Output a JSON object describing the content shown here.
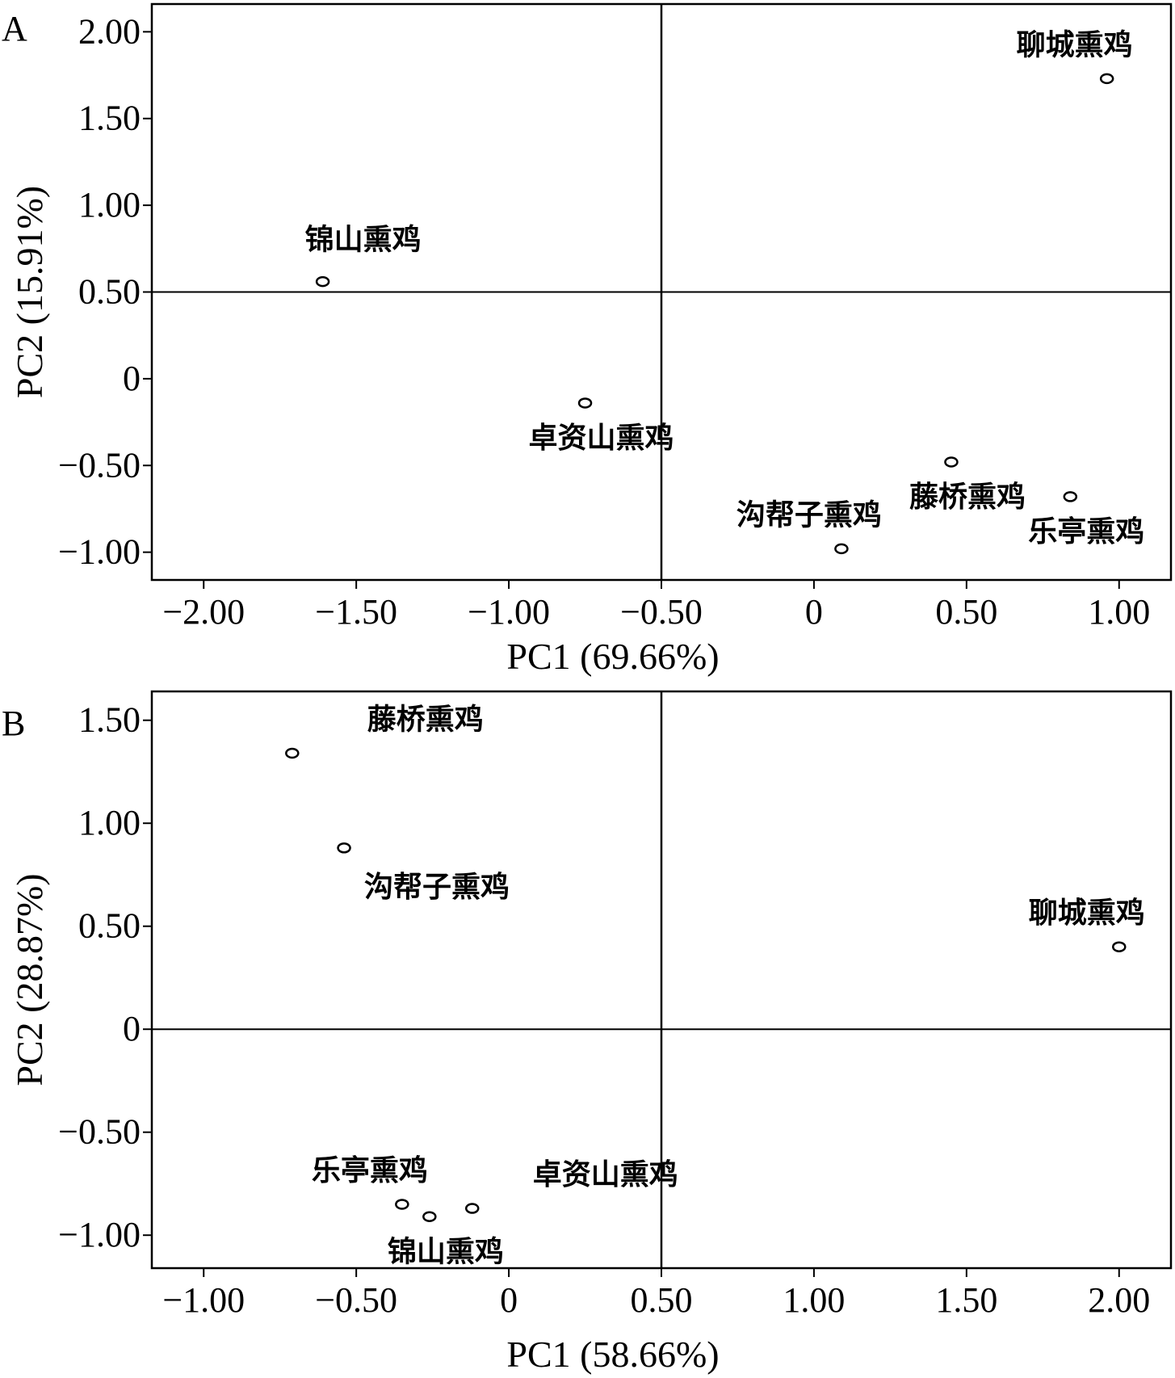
{
  "chart_data": [
    {
      "panel": "A",
      "type": "scatter",
      "xlabel": "PC1 (69.66%)",
      "ylabel": "PC2 (15.91%)",
      "xlim": [
        -2.17,
        1.17
      ],
      "ylim": [
        -1.16,
        2.16
      ],
      "xticks": [
        -2.0,
        -1.5,
        -1.0,
        -0.5,
        0,
        0.5,
        1.0
      ],
      "xtick_labels": [
        "−2.00",
        "−1.50",
        "−1.00",
        "−0.50",
        "0",
        "0.50",
        "1.00"
      ],
      "yticks": [
        -1.0,
        -0.5,
        0,
        0.5,
        1.0,
        1.5,
        2.0
      ],
      "ytick_labels": [
        "−1.00",
        "−0.50",
        "0",
        "0.50",
        "1.00",
        "1.50",
        "2.00"
      ],
      "reference_lines": {
        "x": -0.5,
        "y": 0.5
      },
      "points": [
        {
          "label": "聊城熏鸡",
          "x": 0.96,
          "y": 1.73,
          "label_pos": "above-left"
        },
        {
          "label": "锦山熏鸡",
          "x": -1.61,
          "y": 0.56,
          "label_pos": "above"
        },
        {
          "label": "卓资山熏鸡",
          "x": -0.75,
          "y": -0.14,
          "label_pos": "below"
        },
        {
          "label": "藤桥熏鸡",
          "x": 0.45,
          "y": -0.48,
          "label_pos": "below"
        },
        {
          "label": "乐亭熏鸡",
          "x": 0.84,
          "y": -0.68,
          "label_pos": "below"
        },
        {
          "label": "沟帮子熏鸡",
          "x": 0.09,
          "y": -0.98,
          "label_pos": "above-left"
        }
      ]
    },
    {
      "panel": "B",
      "type": "scatter",
      "xlabel": "PC1 (58.66%)",
      "ylabel": "PC2 (28.87%)",
      "xlim": [
        -1.17,
        2.17
      ],
      "ylim": [
        -1.16,
        1.64
      ],
      "xticks": [
        -1.0,
        -0.5,
        0,
        0.5,
        1.0,
        1.5,
        2.0
      ],
      "xtick_labels": [
        "−1.00",
        "−0.50",
        "0",
        "0.50",
        "1.00",
        "1.50",
        "2.00"
      ],
      "yticks": [
        -1.0,
        -0.5,
        0,
        0.5,
        1.0,
        1.5
      ],
      "ytick_labels": [
        "−1.00",
        "−0.50",
        "0",
        "0.50",
        "1.00",
        "1.50"
      ],
      "reference_lines": {
        "x": 0.5,
        "y": 0
      },
      "points": [
        {
          "label": "藤桥熏鸡",
          "x": -0.71,
          "y": 1.34,
          "label_pos": "above-right"
        },
        {
          "label": "沟帮子熏鸡",
          "x": -0.54,
          "y": 0.88,
          "label_pos": "below-right"
        },
        {
          "label": "聊城熏鸡",
          "x": 2.0,
          "y": 0.4,
          "label_pos": "above-left"
        },
        {
          "label": "乐亭熏鸡",
          "x": -0.35,
          "y": -0.85,
          "label_pos": "above-left"
        },
        {
          "label": "锦山熏鸡",
          "x": -0.26,
          "y": -0.91,
          "label_pos": "below"
        },
        {
          "label": "卓资山熏鸡",
          "x": -0.12,
          "y": -0.87,
          "label_pos": "above-right"
        }
      ]
    }
  ]
}
